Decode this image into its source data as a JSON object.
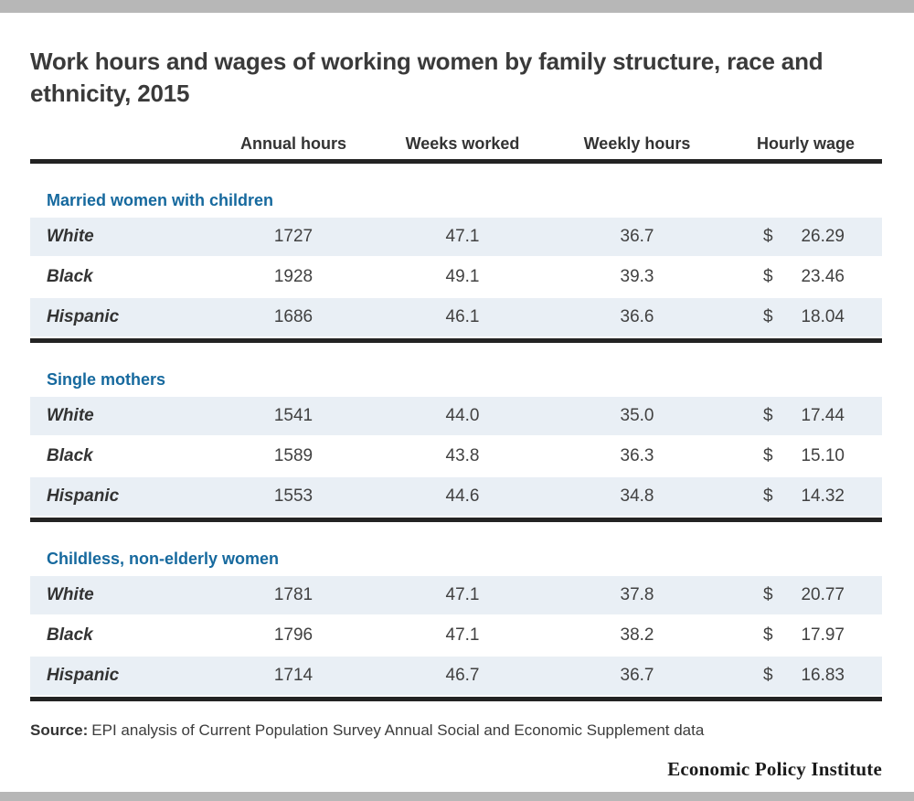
{
  "page": {
    "source_label": "Source:",
    "brand": "Economic Policy Institute",
    "colors": {
      "accent_blue": "#16699e",
      "row_stripe": "#e9eff5",
      "bar_gray": "#b7b7b7",
      "rule_dark": "#232323"
    }
  },
  "chart_data": {
    "type": "table",
    "title": "Work hours and wages of working women by family structure, race and ethnicity, 2015",
    "columns": [
      "Annual hours",
      "Weeks worked",
      "Weekly hours",
      "Hourly wage"
    ],
    "currency_symbol": "$",
    "sections": [
      {
        "label": "Married women with children",
        "rows": [
          {
            "group": "White",
            "annual_hours": "1727",
            "weeks_worked": "47.1",
            "weekly_hours": "36.7",
            "hourly_wage": "26.29"
          },
          {
            "group": "Black",
            "annual_hours": "1928",
            "weeks_worked": "49.1",
            "weekly_hours": "39.3",
            "hourly_wage": "23.46"
          },
          {
            "group": "Hispanic",
            "annual_hours": "1686",
            "weeks_worked": "46.1",
            "weekly_hours": "36.6",
            "hourly_wage": "18.04"
          }
        ]
      },
      {
        "label": "Single mothers",
        "rows": [
          {
            "group": "White",
            "annual_hours": "1541",
            "weeks_worked": "44.0",
            "weekly_hours": "35.0",
            "hourly_wage": "17.44"
          },
          {
            "group": "Black",
            "annual_hours": "1589",
            "weeks_worked": "43.8",
            "weekly_hours": "36.3",
            "hourly_wage": "15.10"
          },
          {
            "group": "Hispanic",
            "annual_hours": "1553",
            "weeks_worked": "44.6",
            "weekly_hours": "34.8",
            "hourly_wage": "14.32"
          }
        ]
      },
      {
        "label": "Childless, non-elderly women",
        "rows": [
          {
            "group": "White",
            "annual_hours": "1781",
            "weeks_worked": "47.1",
            "weekly_hours": "37.8",
            "hourly_wage": "20.77"
          },
          {
            "group": "Black",
            "annual_hours": "1796",
            "weeks_worked": "47.1",
            "weekly_hours": "38.2",
            "hourly_wage": "17.97"
          },
          {
            "group": "Hispanic",
            "annual_hours": "1714",
            "weeks_worked": "46.7",
            "weekly_hours": "36.7",
            "hourly_wage": "16.83"
          }
        ]
      }
    ],
    "source": "EPI analysis of Current Population Survey Annual Social and Economic Supplement data"
  }
}
